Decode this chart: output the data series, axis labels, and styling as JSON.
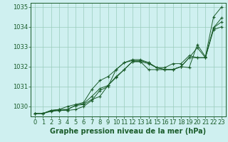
{
  "background_color": "#cff0f0",
  "plot_bg_color": "#cff0f0",
  "grid_color": "#99ccbb",
  "line_color": "#1a5c2a",
  "xlabel": "Graphe pression niveau de la mer (hPa)",
  "xlabel_fontsize": 7,
  "tick_fontsize": 6,
  "ylim": [
    1029.5,
    1035.2
  ],
  "xlim": [
    -0.5,
    23.5
  ],
  "yticks": [
    1030,
    1031,
    1032,
    1033,
    1034,
    1035
  ],
  "xticks": [
    0,
    1,
    2,
    3,
    4,
    5,
    6,
    7,
    8,
    9,
    10,
    11,
    12,
    13,
    14,
    15,
    16,
    17,
    18,
    19,
    20,
    21,
    22,
    23
  ],
  "series": [
    [
      1029.65,
      1029.65,
      1029.8,
      1029.8,
      1029.8,
      1029.85,
      1030.0,
      1030.3,
      1030.8,
      1031.0,
      1031.85,
      1032.2,
      1032.35,
      1032.35,
      1032.2,
      1031.95,
      1031.85,
      1031.85,
      1032.0,
      1031.95,
      1033.1,
      1032.5,
      1034.5,
      1035.0
    ],
    [
      1029.65,
      1029.65,
      1029.8,
      1029.85,
      1029.85,
      1030.05,
      1030.15,
      1030.5,
      1030.9,
      1031.05,
      1031.5,
      1031.85,
      1032.25,
      1032.25,
      1031.85,
      1031.85,
      1031.85,
      1031.85,
      1032.0,
      1032.45,
      1032.45,
      1032.45,
      1033.85,
      1034.0
    ],
    [
      1029.65,
      1029.65,
      1029.8,
      1029.85,
      1030.0,
      1030.1,
      1030.2,
      1030.85,
      1031.3,
      1031.5,
      1031.85,
      1032.2,
      1032.3,
      1032.3,
      1032.2,
      1031.95,
      1031.95,
      1032.15,
      1032.15,
      1032.55,
      1032.45,
      1032.45,
      1033.95,
      1034.45
    ],
    [
      1029.65,
      1029.65,
      1029.75,
      1029.8,
      1029.85,
      1030.05,
      1030.1,
      1030.35,
      1030.5,
      1031.05,
      1031.45,
      1031.85,
      1032.25,
      1032.25,
      1032.15,
      1031.95,
      1031.85,
      1031.85,
      1032.0,
      1032.45,
      1032.95,
      1032.45,
      1033.95,
      1034.25
    ]
  ]
}
